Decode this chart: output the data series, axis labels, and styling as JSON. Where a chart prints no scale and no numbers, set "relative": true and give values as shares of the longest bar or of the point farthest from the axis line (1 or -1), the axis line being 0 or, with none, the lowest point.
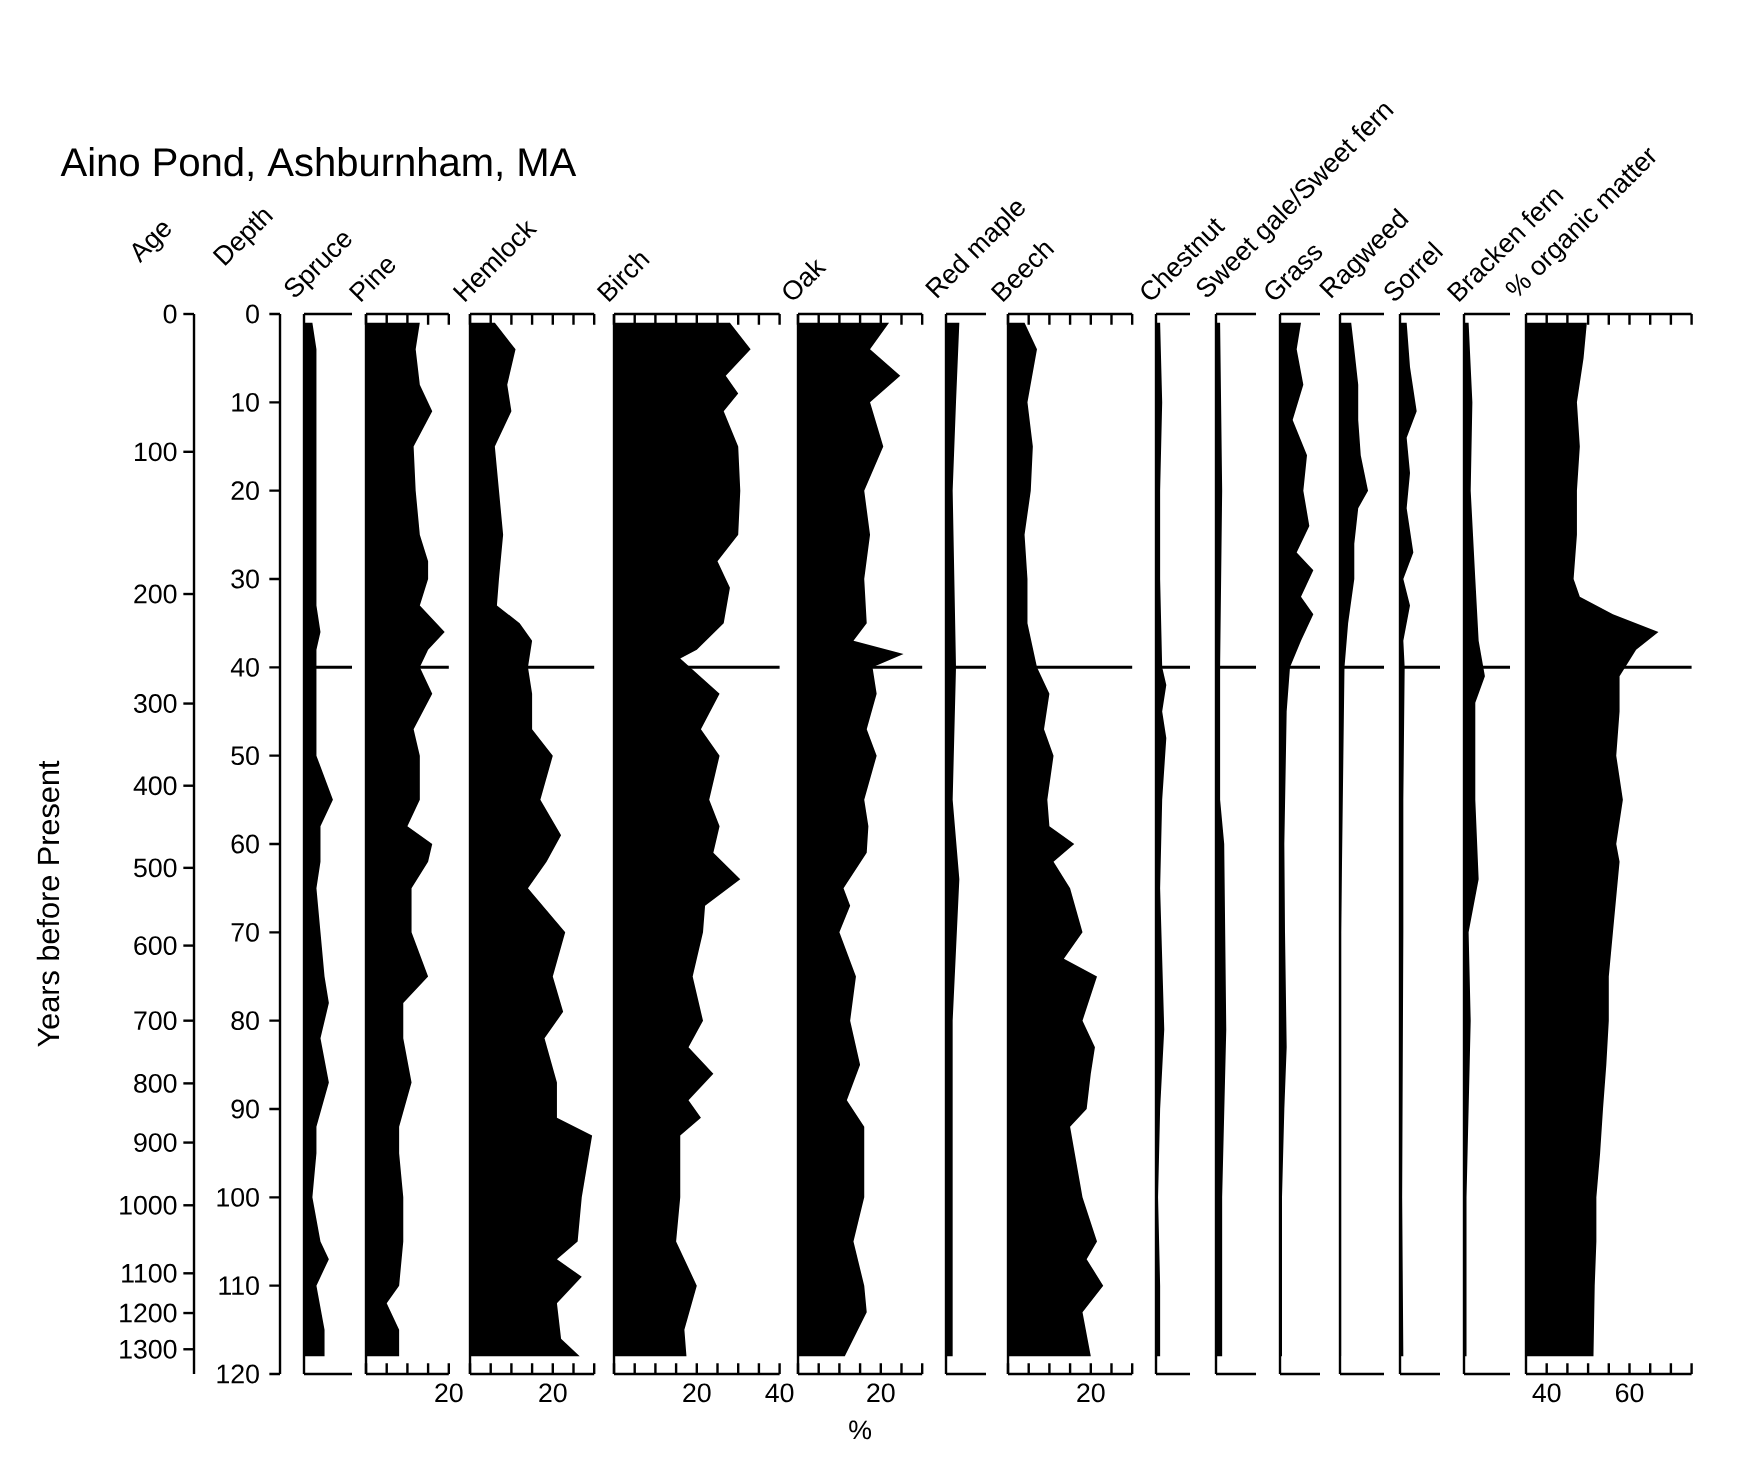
{
  "chart_data": [
    {
      "type": "area",
      "orientation": "horizontal",
      "relative": true,
      "tick_labels": "y",
      "title": "Aino Pond, Ashburnham, MA",
      "ylabel": "Depth",
      "y2label": "Age",
      "annotations": [
        "Years before Present",
        "0",
        "100",
        "200",
        "300",
        "400",
        "500",
        "600",
        "700",
        "800",
        "900",
        "1000",
        "1100",
        "1200",
        "1300"
      ],
      "x": [
        1,
        4,
        8,
        11,
        15,
        20,
        25,
        30,
        33,
        36,
        38,
        40,
        43,
        47,
        50,
        55,
        58,
        62,
        65,
        70,
        75,
        78,
        82,
        87,
        92,
        95,
        100,
        105,
        107,
        110,
        115,
        118
      ],
      "series": [
        {
          "name": "Spruce",
          "color": "#000000",
          "values": [
            0.29,
            0.43,
            0.43,
            0.43,
            0.43,
            0.43,
            0.43,
            0.43,
            0.43,
            0.57,
            0.43,
            0.43,
            0.43,
            0.43,
            0.43,
            1,
            0.57,
            0.57,
            0.43,
            0.57,
            0.71,
            0.86,
            0.57,
            0.86,
            0.43,
            0.43,
            0.29,
            0.57,
            0.86,
            0.43,
            0.71,
            0.71
          ]
        }
      ],
      "ylim": [
        120,
        0
      ],
      "yticks": [
        0,
        10,
        20,
        30,
        40,
        50,
        60,
        70,
        80,
        90,
        100,
        110,
        120
      ],
      "ref_lines": [
        {
          "axis": "y",
          "value": 40
        }
      ]
    },
    {
      "type": "area",
      "orientation": "horizontal",
      "tick_labels": "x",
      "x": [
        1,
        4,
        8,
        11,
        15,
        20,
        25,
        28,
        30,
        33,
        36,
        38,
        40,
        43,
        47,
        50,
        55,
        58,
        60,
        62,
        65,
        70,
        75,
        78,
        82,
        87,
        92,
        95,
        100,
        105,
        110,
        112,
        115,
        118
      ],
      "series": [
        {
          "name": "Pine",
          "color": "#000000",
          "values": [
            13,
            12,
            13,
            16,
            11.5,
            12,
            13,
            15,
            15,
            13,
            19,
            15,
            13,
            16,
            11.5,
            13,
            13,
            10,
            16,
            15,
            11,
            11,
            15,
            9,
            9,
            11,
            8,
            8,
            9,
            9,
            8,
            5,
            8,
            8
          ]
        }
      ],
      "xlim": [
        0,
        20
      ],
      "xticks": [
        {
          "value": 0,
          "label": null
        },
        {
          "value": 5,
          "label": null
        },
        {
          "value": 10,
          "label": null
        },
        {
          "value": 15,
          "label": null
        },
        20
      ],
      "ylim": [
        120,
        0
      ],
      "ref_lines": [
        {
          "axis": "y",
          "value": 40
        }
      ]
    },
    {
      "type": "area",
      "orientation": "horizontal",
      "tick_labels": "x",
      "x": [
        1,
        4,
        8,
        11,
        15,
        20,
        25,
        30,
        33,
        35,
        37,
        40,
        43,
        47,
        50,
        55,
        59,
        62,
        65,
        70,
        75,
        79,
        82,
        87,
        91,
        93,
        100,
        105,
        107,
        109,
        112,
        116,
        118
      ],
      "series": [
        {
          "name": "Hemlock",
          "color": "#000000",
          "values": [
            6,
            11,
            9,
            10,
            6,
            7,
            8,
            7,
            6.5,
            12,
            15,
            14,
            15,
            15,
            20,
            17,
            22,
            18.5,
            14,
            23,
            20,
            22.5,
            18,
            21,
            21,
            29.5,
            27,
            26,
            21,
            27,
            21,
            22,
            26.5
          ]
        }
      ],
      "xlim": [
        0,
        30
      ],
      "xticks": [
        {
          "value": 0,
          "label": null
        },
        {
          "value": 5,
          "label": null
        },
        {
          "value": 10,
          "label": null
        },
        {
          "value": 15,
          "label": null
        },
        20,
        {
          "value": 25,
          "label": null
        },
        {
          "value": 30,
          "label": null
        }
      ],
      "ylim": [
        120,
        0
      ],
      "ref_lines": [
        {
          "axis": "y",
          "value": 40
        }
      ]
    },
    {
      "type": "area",
      "orientation": "horizontal",
      "tick_labels": "x",
      "x": [
        1,
        4,
        7,
        9,
        11,
        15,
        20,
        25,
        28,
        31,
        35,
        38,
        39,
        43,
        47,
        50,
        55,
        58,
        61,
        64,
        67,
        70,
        75,
        80,
        83,
        86,
        89,
        91,
        93,
        100,
        105,
        110,
        115,
        118
      ],
      "series": [
        {
          "name": "Birch",
          "color": "#000000",
          "values": [
            28,
            33,
            27,
            30,
            26.5,
            30,
            30.5,
            30,
            25,
            28,
            26.5,
            20,
            16,
            25.5,
            21,
            25.5,
            23,
            25.5,
            24,
            30.5,
            22,
            21.5,
            19,
            21.5,
            18,
            24,
            18,
            21,
            16,
            16,
            15,
            20,
            17,
            17.5
          ]
        }
      ],
      "xlim": [
        0,
        40
      ],
      "xticks": [
        {
          "value": 0,
          "label": null
        },
        {
          "value": 5,
          "label": null
        },
        {
          "value": 10,
          "label": null
        },
        {
          "value": 15,
          "label": null
        },
        20,
        {
          "value": 25,
          "label": null
        },
        {
          "value": 30,
          "label": null
        },
        {
          "value": 35,
          "label": null
        },
        40
      ],
      "ylim": [
        120,
        0
      ],
      "ref_lines": [
        {
          "axis": "y",
          "value": 40
        }
      ]
    },
    {
      "type": "area",
      "orientation": "horizontal",
      "tick_labels": "x",
      "xlabel": "%",
      "x": [
        1,
        4,
        7,
        10,
        15,
        20,
        25,
        30,
        35,
        37,
        38.5,
        40,
        43,
        47,
        50,
        55,
        58,
        61,
        65,
        67,
        70,
        75,
        80,
        85,
        89,
        92,
        100,
        105,
        110,
        113,
        118
      ],
      "series": [
        {
          "name": "Oak",
          "color": "#000000",
          "values": [
            22,
            17.4,
            24.7,
            17.4,
            20.6,
            16,
            17.4,
            16,
            16.6,
            13.4,
            25.5,
            18,
            19,
            16.6,
            19,
            16,
            17,
            16.6,
            11,
            12.6,
            10,
            14,
            12.6,
            15,
            11.8,
            16,
            16,
            13.4,
            16,
            16.6,
            11.3
          ]
        }
      ],
      "xlim": [
        0,
        30
      ],
      "xticks": [
        {
          "value": 0,
          "label": null
        },
        {
          "value": 5,
          "label": null
        },
        {
          "value": 10,
          "label": null
        },
        {
          "value": 15,
          "label": null
        },
        20,
        {
          "value": 25,
          "label": null
        },
        {
          "value": 30,
          "label": null
        }
      ],
      "ylim": [
        120,
        0
      ],
      "ref_lines": [
        {
          "axis": "y",
          "value": 40
        }
      ]
    },
    {
      "type": "area",
      "orientation": "horizontal",
      "relative": true,
      "tick_labels": false,
      "x": [
        1,
        10,
        20,
        40,
        55,
        64,
        72,
        80,
        100,
        118
      ],
      "series": [
        {
          "name": "Red maple",
          "color": "#000000",
          "values": [
            1,
            0.75,
            0.5,
            0.75,
            0.5,
            1,
            0.75,
            0.5,
            0.5,
            0.5
          ]
        }
      ],
      "ylim": [
        120,
        0
      ],
      "ref_lines": [
        {
          "axis": "y",
          "value": 40
        }
      ]
    },
    {
      "type": "area",
      "orientation": "horizontal",
      "tick_labels": "x",
      "x": [
        1,
        4,
        10,
        15,
        20,
        25,
        30,
        35,
        40,
        43,
        47,
        50,
        55,
        58,
        60,
        62,
        65,
        70,
        73,
        75,
        80,
        83,
        86,
        90,
        92,
        100,
        105,
        107,
        110,
        113,
        118
      ],
      "series": [
        {
          "name": "Beech",
          "color": "#000000",
          "values": [
            4,
            7,
            4.7,
            6,
            5.5,
            4,
            4.7,
            4.7,
            7,
            10,
            8.7,
            11,
            9.5,
            10,
            16,
            11,
            15,
            18,
            13.5,
            21.5,
            18,
            21,
            20,
            19,
            15,
            18,
            21.5,
            19,
            23,
            18,
            20
          ]
        }
      ],
      "xlim": [
        0,
        30
      ],
      "xticks": [
        {
          "value": 0,
          "label": null
        },
        {
          "value": 5,
          "label": null
        },
        {
          "value": 10,
          "label": null
        },
        {
          "value": 15,
          "label": null
        },
        20,
        {
          "value": 25,
          "label": null
        },
        {
          "value": 30,
          "label": null
        }
      ],
      "ylim": [
        120,
        0
      ],
      "ref_lines": [
        {
          "axis": "y",
          "value": 40
        }
      ]
    },
    {
      "type": "area",
      "orientation": "horizontal",
      "relative": true,
      "tick_labels": false,
      "x": [
        1,
        10,
        20,
        30,
        40,
        42,
        45,
        48,
        55,
        65,
        81,
        90,
        100,
        110,
        118
      ],
      "series": [
        {
          "name": "Chestnut",
          "color": "#000000",
          "values": [
            0.4,
            0.6,
            0.4,
            0.4,
            0.6,
            1,
            0.6,
            1,
            0.6,
            0.4,
            0.8,
            0.4,
            0.2,
            0.4,
            0.4
          ]
        }
      ],
      "ylim": [
        120,
        0
      ],
      "ref_lines": [
        {
          "axis": "y",
          "value": 40
        }
      ]
    },
    {
      "type": "area",
      "orientation": "horizontal",
      "relative": true,
      "tick_labels": false,
      "x": [
        1,
        20,
        40,
        55,
        60,
        81,
        100,
        118
      ],
      "series": [
        {
          "name": "Sweet gale/Sweet fern",
          "color": "#000000",
          "values": [
            0.4,
            0.6,
            0.4,
            0.4,
            0.8,
            1,
            0.6,
            0.6
          ]
        }
      ],
      "ylim": [
        120,
        0
      ],
      "ref_lines": [
        {
          "axis": "y",
          "value": 40
        }
      ]
    },
    {
      "type": "area",
      "orientation": "horizontal",
      "relative": true,
      "tick_labels": false,
      "x": [
        1,
        4,
        8,
        12,
        16,
        20,
        24,
        27,
        29,
        32,
        34,
        37,
        40,
        45,
        60,
        70,
        83,
        90,
        100,
        118
      ],
      "series": [
        {
          "name": "Grass",
          "color": "#000000",
          "values": [
            0.63,
            0.5,
            0.7,
            0.38,
            0.81,
            0.7,
            0.88,
            0.5,
            1,
            0.63,
            1,
            0.63,
            0.3,
            0.2,
            0.13,
            0.15,
            0.2,
            0.13,
            0.06,
            0.06
          ]
        }
      ],
      "ylim": [
        120,
        0
      ],
      "ref_lines": [
        {
          "axis": "y",
          "value": 40
        }
      ]
    },
    {
      "type": "area",
      "orientation": "horizontal",
      "relative": true,
      "tick_labels": false,
      "x": [
        1,
        4,
        8,
        12,
        16,
        20,
        22,
        26,
        30,
        35,
        40,
        50,
        70,
        100,
        118
      ],
      "series": [
        {
          "name": "Ragweed",
          "color": "#000000",
          "values": [
            0.4,
            0.51,
            0.65,
            0.65,
            0.74,
            1,
            0.65,
            0.51,
            0.51,
            0.29,
            0.16,
            0.12,
            0.04,
            0.04,
            0.04
          ]
        }
      ],
      "ylim": [
        120,
        0
      ],
      "ref_lines": [
        {
          "axis": "y",
          "value": 40
        }
      ]
    },
    {
      "type": "area",
      "orientation": "horizontal",
      "relative": true,
      "tick_labels": false,
      "x": [
        1,
        6,
        11,
        14,
        18,
        22,
        27,
        30,
        33,
        37,
        40,
        55,
        70,
        100,
        118
      ],
      "series": [
        {
          "name": "Sorrel",
          "color": "#000000",
          "values": [
            0.4,
            0.6,
            1,
            0.4,
            0.6,
            0.4,
            0.8,
            0.2,
            0.6,
            0.2,
            0.28,
            0.2,
            0.2,
            0.13,
            0.2
          ]
        }
      ],
      "ylim": [
        120,
        0
      ],
      "ref_lines": [
        {
          "axis": "y",
          "value": 40
        }
      ]
    },
    {
      "type": "area",
      "orientation": "horizontal",
      "relative": true,
      "tick_labels": false,
      "x": [
        1,
        10,
        20,
        30,
        37,
        41,
        44,
        55,
        64,
        70,
        80,
        100,
        118
      ],
      "series": [
        {
          "name": "Bracken fern",
          "color": "#000000",
          "values": [
            0.22,
            0.4,
            0.32,
            0.54,
            0.7,
            1,
            0.54,
            0.54,
            0.7,
            0.22,
            0.32,
            0.12,
            0.12
          ]
        }
      ],
      "ylim": [
        120,
        0
      ],
      "ref_lines": [
        {
          "axis": "y",
          "value": 40
        }
      ]
    },
    {
      "type": "area",
      "orientation": "horizontal",
      "tick_labels": "x",
      "x": [
        1,
        5,
        10,
        15,
        20,
        25,
        30,
        32,
        34,
        36,
        38,
        41,
        45,
        50,
        55,
        60,
        62,
        70,
        75,
        80,
        85,
        90,
        95,
        100,
        105,
        110,
        118
      ],
      "series": [
        {
          "name": "% organic matter",
          "color": "#000000",
          "values": [
            49.7,
            48.9,
            47.3,
            48,
            47.3,
            47.3,
            46.5,
            48,
            56,
            67,
            61.6,
            57.6,
            57.6,
            56.8,
            58.4,
            56.8,
            57.6,
            56,
            55,
            55,
            54.4,
            53.6,
            52.9,
            52,
            52,
            51.6,
            51.3
          ]
        }
      ],
      "xlim": [
        35,
        75
      ],
      "xticks": [
        40,
        {
          "value": 45,
          "label": null
        },
        {
          "value": 50,
          "label": null
        },
        {
          "value": 55,
          "label": null
        },
        60,
        {
          "value": 65,
          "label": null
        },
        {
          "value": 70,
          "label": null
        },
        {
          "value": 75,
          "label": null
        }
      ],
      "ylim": [
        120,
        0
      ],
      "ref_lines": [
        {
          "axis": "y",
          "value": 40
        }
      ]
    }
  ]
}
